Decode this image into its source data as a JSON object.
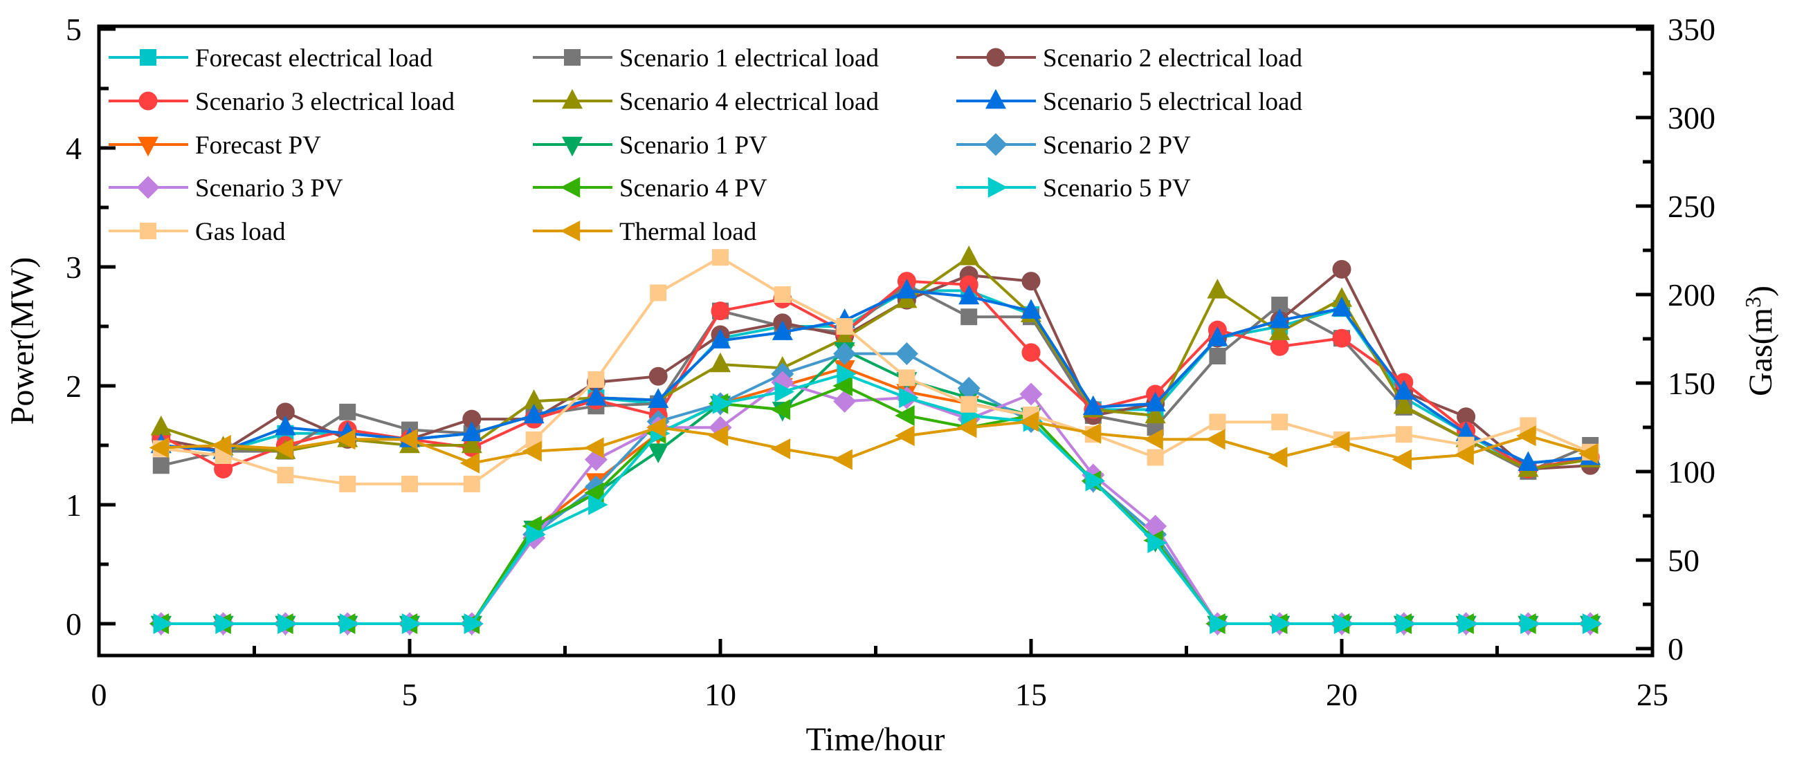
{
  "chart_data": {
    "type": "line",
    "title": "",
    "xlabel": "Time/hour",
    "ylabel": "Power(MW)",
    "y2label": "Gas(m",
    "y2label_sup": "3",
    "y2label_close": ")",
    "xlim": [
      0,
      25
    ],
    "ylim": [
      0,
      5
    ],
    "y2lim": [
      0,
      350
    ],
    "xticks": [
      "0",
      "5",
      "10",
      "15",
      "20",
      "25"
    ],
    "yticks": [
      "0",
      "1",
      "2",
      "3",
      "4",
      "5"
    ],
    "y2ticks": [
      "0",
      "50",
      "100",
      "150",
      "200",
      "250",
      "300",
      "350"
    ],
    "grid": false,
    "legend_placement": "top-left",
    "x": [
      1,
      2,
      3,
      4,
      5,
      6,
      7,
      8,
      9,
      10,
      11,
      12,
      13,
      14,
      15,
      16,
      17,
      18,
      19,
      20,
      21,
      22,
      23,
      24
    ],
    "series": [
      {
        "name": "Forecast electrical load",
        "color": "#00c4c8",
        "marker": "square",
        "axis": "left",
        "values": [
          1.5,
          1.45,
          1.6,
          1.6,
          1.55,
          1.6,
          1.75,
          1.9,
          1.85,
          2.4,
          2.5,
          2.5,
          2.8,
          2.8,
          2.6,
          1.8,
          1.8,
          2.4,
          2.5,
          2.65,
          1.9,
          1.6,
          1.3,
          1.4
        ]
      },
      {
        "name": "Scenario 1 electrical load",
        "color": "#777777",
        "marker": "square",
        "axis": "left",
        "values": [
          1.33,
          1.45,
          1.45,
          1.78,
          1.63,
          1.6,
          1.75,
          1.83,
          1.85,
          2.63,
          2.5,
          2.45,
          2.85,
          2.58,
          2.58,
          1.75,
          1.65,
          2.25,
          2.68,
          2.4,
          1.82,
          1.55,
          1.28,
          1.5
        ]
      },
      {
        "name": "Scenario 2 electrical load",
        "color": "#8b4c4c",
        "marker": "circle",
        "axis": "left",
        "values": [
          1.55,
          1.45,
          1.78,
          1.55,
          1.55,
          1.72,
          1.72,
          2.03,
          2.08,
          2.43,
          2.53,
          2.42,
          2.72,
          2.93,
          2.88,
          1.75,
          1.85,
          2.4,
          2.55,
          2.98,
          1.95,
          1.74,
          1.3,
          1.33
        ]
      },
      {
        "name": "Scenario 3 electrical load",
        "color": "#ff4040",
        "marker": "circle",
        "axis": "left",
        "values": [
          1.58,
          1.3,
          1.5,
          1.63,
          1.55,
          1.48,
          1.72,
          1.88,
          1.75,
          2.63,
          2.73,
          2.45,
          2.88,
          2.85,
          2.28,
          1.8,
          1.93,
          2.47,
          2.33,
          2.4,
          2.03,
          1.62,
          1.3,
          1.4
        ]
      },
      {
        "name": "Scenario 4 electrical load",
        "color": "#929000",
        "marker": "triangle-up",
        "axis": "left",
        "values": [
          1.65,
          1.48,
          1.45,
          1.55,
          1.5,
          1.5,
          1.87,
          1.9,
          1.88,
          2.18,
          2.15,
          2.4,
          2.72,
          3.08,
          2.6,
          1.8,
          1.75,
          2.8,
          2.45,
          2.73,
          1.83,
          1.55,
          1.3,
          1.38
        ]
      },
      {
        "name": "Scenario 5 electrical load",
        "color": "#0070e0",
        "marker": "triangle-up",
        "axis": "left",
        "values": [
          1.5,
          1.45,
          1.65,
          1.6,
          1.55,
          1.6,
          1.75,
          1.9,
          1.88,
          2.38,
          2.45,
          2.55,
          2.8,
          2.75,
          2.63,
          1.82,
          1.85,
          2.4,
          2.55,
          2.65,
          1.95,
          1.6,
          1.35,
          1.4
        ]
      },
      {
        "name": "Forecast PV",
        "color": "#ff6600",
        "marker": "triangle-down",
        "axis": "left",
        "values": [
          0,
          0,
          0,
          0,
          0,
          0,
          0.8,
          1.2,
          1.6,
          1.85,
          2.0,
          2.15,
          1.95,
          1.85,
          1.75,
          1.2,
          0.7,
          0,
          0,
          0,
          0,
          0,
          0,
          0
        ]
      },
      {
        "name": "Scenario 1 PV",
        "color": "#00a860",
        "marker": "triangle-down",
        "axis": "left",
        "values": [
          0,
          0,
          0,
          0,
          0,
          0,
          0.8,
          1.1,
          1.45,
          1.85,
          1.8,
          2.3,
          2.05,
          1.9,
          1.75,
          1.2,
          0.7,
          0,
          0,
          0,
          0,
          0,
          0,
          0
        ]
      },
      {
        "name": "Scenario 2 PV",
        "color": "#4499cc",
        "marker": "diamond",
        "axis": "left",
        "values": [
          0,
          0,
          0,
          0,
          0,
          0,
          0.75,
          1.15,
          1.7,
          1.85,
          2.1,
          2.27,
          2.27,
          1.98,
          1.7,
          1.2,
          0.75,
          0,
          0,
          0,
          0,
          0,
          0,
          0
        ]
      },
      {
        "name": "Scenario 3 PV",
        "color": "#c080e0",
        "marker": "diamond",
        "axis": "left",
        "values": [
          0,
          0,
          0,
          0,
          0,
          0,
          0.72,
          1.38,
          1.65,
          1.65,
          2.03,
          1.87,
          1.9,
          1.72,
          1.93,
          1.25,
          0.82,
          0,
          0,
          0,
          0,
          0,
          0,
          0
        ]
      },
      {
        "name": "Scenario 4 PV",
        "color": "#33b000",
        "marker": "triangle-left",
        "axis": "left",
        "values": [
          0,
          0,
          0,
          0,
          0,
          0,
          0.82,
          1.1,
          1.6,
          1.85,
          1.8,
          2.0,
          1.75,
          1.65,
          1.75,
          1.2,
          0.7,
          0,
          0,
          0,
          0,
          0,
          0,
          0
        ]
      },
      {
        "name": "Scenario 5 PV",
        "color": "#00cccc",
        "marker": "triangle-right",
        "axis": "left",
        "values": [
          0,
          0,
          0,
          0,
          0,
          0,
          0.75,
          1.0,
          1.6,
          1.85,
          1.95,
          2.1,
          1.9,
          1.75,
          1.7,
          1.2,
          0.68,
          0,
          0,
          0,
          0,
          0,
          0,
          0
        ]
      },
      {
        "name": "Gas load",
        "color": "#ffc98a",
        "marker": "square",
        "axis": "right",
        "values": [
          113,
          109,
          98,
          93,
          93,
          93,
          118,
          152,
          201,
          221,
          200,
          182,
          153,
          138,
          132,
          121,
          108,
          128,
          128,
          118,
          121,
          115,
          126,
          111
        ]
      },
      {
        "name": "Thermal load",
        "color": "#dd9900",
        "marker": "triangle-left",
        "axis": "left",
        "values": [
          1.48,
          1.5,
          1.47,
          1.55,
          1.55,
          1.35,
          1.45,
          1.48,
          1.65,
          1.58,
          1.47,
          1.38,
          1.58,
          1.65,
          1.7,
          1.6,
          1.55,
          1.55,
          1.4,
          1.53,
          1.38,
          1.42,
          1.58,
          1.43
        ]
      }
    ]
  }
}
